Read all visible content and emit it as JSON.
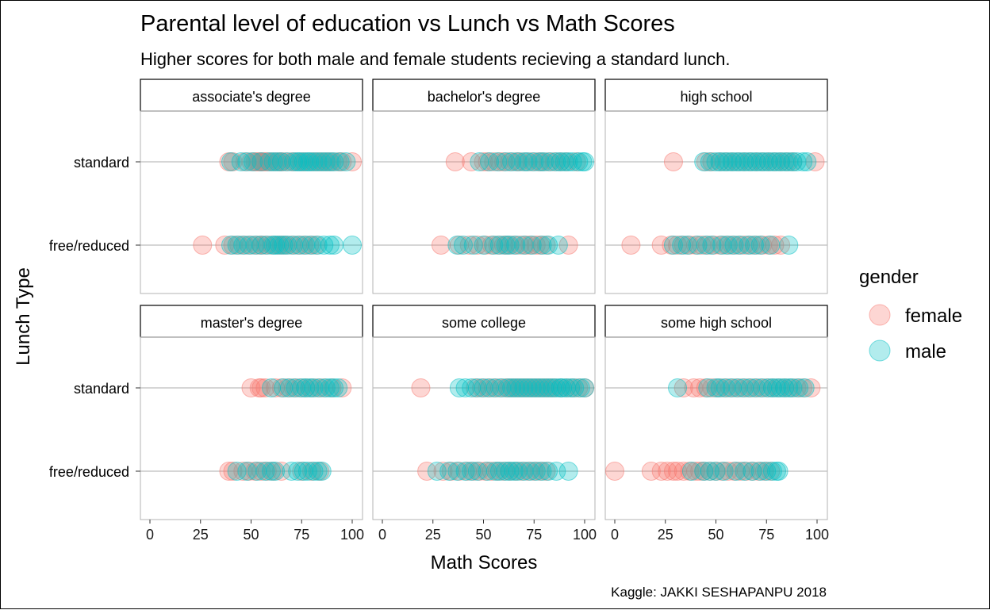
{
  "chart_data": {
    "type": "scatter",
    "title": "Parental level of education vs Lunch vs Math Scores",
    "subtitle": "Higher scores for both male and female students recieving a standard lunch.",
    "xlabel": "Math Scores",
    "ylabel": "Lunch Type",
    "caption": "Kaggle: JAKKI SESHAPANPU 2018",
    "xlim": [
      0,
      100
    ],
    "x_ticks": [
      0,
      25,
      50,
      75,
      100
    ],
    "y_categories": [
      "standard",
      "free/reduced"
    ],
    "legend": {
      "title": "gender",
      "position": "right",
      "entries": [
        {
          "name": "female",
          "color": "#F8766D"
        },
        {
          "name": "male",
          "color": "#00BFC4"
        }
      ]
    },
    "point_alpha": 0.3,
    "panels": [
      {
        "label": "associate's degree",
        "standard": {
          "female": [
            39,
            41,
            47,
            50,
            52,
            53,
            54,
            55,
            56,
            57,
            58,
            60,
            62,
            64,
            65,
            67,
            70,
            72,
            75,
            77,
            80,
            82,
            84,
            86,
            88,
            90,
            93,
            95,
            100
          ],
          "male": [
            40,
            45,
            48,
            51,
            55,
            59,
            61,
            63,
            65,
            68,
            71,
            73,
            74,
            76,
            78,
            79,
            81,
            83,
            85,
            87,
            89,
            91,
            94,
            97
          ]
        },
        "free/reduced": {
          "female": [
            26,
            37,
            41,
            44,
            47,
            50,
            53,
            55,
            57,
            60,
            63,
            65,
            67,
            70,
            73,
            76,
            79,
            82
          ],
          "male": [
            40,
            43,
            46,
            49,
            52,
            55,
            58,
            61,
            62,
            64,
            66,
            68,
            71,
            74,
            77,
            80,
            83,
            86,
            89,
            91,
            100
          ]
        }
      },
      {
        "label": "bachelor's degree",
        "standard": {
          "female": [
            36,
            44,
            50,
            52,
            55,
            58,
            60,
            63,
            66,
            68,
            71,
            74,
            77,
            79,
            82,
            85,
            88,
            91,
            96
          ],
          "male": [
            48,
            53,
            57,
            61,
            64,
            67,
            70,
            72,
            75,
            78,
            80,
            83,
            86,
            88,
            90,
            92,
            94,
            97,
            99,
            100
          ]
        },
        "free/reduced": {
          "female": [
            29,
            38,
            43,
            47,
            51,
            54,
            57,
            60,
            62,
            65,
            68,
            71,
            73,
            76,
            78,
            81,
            92
          ],
          "male": [
            37,
            40,
            45,
            50,
            55,
            58,
            61,
            63,
            66,
            70,
            74,
            79,
            82,
            87
          ]
        }
      },
      {
        "label": "high school",
        "standard": {
          "female": [
            29,
            45,
            48,
            52,
            55,
            58,
            61,
            64,
            67,
            70,
            73,
            76,
            79,
            82,
            85,
            88,
            99
          ],
          "male": [
            44,
            47,
            50,
            52,
            54,
            56,
            58,
            60,
            62,
            64,
            66,
            68,
            70,
            72,
            74,
            76,
            78,
            80,
            82,
            84,
            86,
            88,
            90,
            93,
            95
          ]
        },
        "free/reduced": {
          "female": [
            8,
            23,
            28,
            31,
            34,
            37,
            40,
            43,
            46,
            49,
            52,
            55,
            58,
            61,
            64,
            67,
            70,
            73,
            76,
            79,
            82
          ],
          "male": [
            29,
            33,
            36,
            41,
            45,
            48,
            53,
            56,
            59,
            62,
            66,
            69,
            72,
            77,
            86
          ]
        }
      },
      {
        "label": "master's degree",
        "standard": {
          "female": [
            50,
            54,
            55,
            57,
            62,
            65,
            68,
            71,
            74,
            77,
            80,
            83,
            86,
            90,
            95
          ],
          "male": [
            60,
            66,
            69,
            72,
            75,
            77,
            79,
            81,
            84,
            87,
            89,
            91,
            93
          ]
        },
        "free/reduced": {
          "female": [
            39,
            41,
            46,
            49,
            52,
            55,
            58,
            61,
            65,
            75,
            80,
            84
          ],
          "male": [
            43,
            48,
            53,
            57,
            60,
            62,
            70,
            73,
            76,
            78,
            81,
            83,
            85
          ]
        }
      },
      {
        "label": "some college",
        "standard": {
          "female": [
            19,
            46,
            49,
            52,
            55,
            58,
            61,
            63,
            65,
            67,
            69,
            71,
            73,
            75,
            77,
            79,
            81,
            83,
            85,
            88,
            91,
            94,
            97,
            100
          ],
          "male": [
            38,
            41,
            44,
            47,
            50,
            53,
            56,
            59,
            62,
            64,
            66,
            68,
            70,
            72,
            74,
            76,
            78,
            80,
            82,
            84,
            86,
            88,
            89,
            91,
            93,
            95,
            98,
            100
          ]
        },
        "free/reduced": {
          "female": [
            22,
            30,
            34,
            38,
            42,
            45,
            48,
            51,
            54,
            57,
            60,
            63,
            66,
            69,
            72,
            75,
            78,
            81
          ],
          "male": [
            27,
            33,
            37,
            41,
            44,
            47,
            52,
            56,
            58,
            61,
            63,
            65,
            67,
            70,
            73,
            76,
            79,
            82,
            86,
            92
          ]
        }
      },
      {
        "label": "some high school",
        "standard": {
          "female": [
            34,
            39,
            42,
            45,
            48,
            51,
            54,
            57,
            60,
            63,
            66,
            69,
            72,
            75,
            78,
            81,
            84,
            87,
            90,
            93,
            97
          ],
          "male": [
            31,
            46,
            50,
            52,
            55,
            58,
            61,
            64,
            67,
            70,
            73,
            76,
            78,
            80,
            82,
            84,
            86,
            88,
            91,
            94
          ]
        },
        "free/reduced": {
          "female": [
            0,
            18,
            23,
            26,
            29,
            31,
            34,
            37,
            40,
            42,
            44,
            47,
            50,
            53,
            56,
            59,
            62,
            65,
            68,
            71,
            74,
            77
          ],
          "male": [
            38,
            44,
            47,
            50,
            54,
            60,
            64,
            68,
            72,
            75,
            78,
            80,
            81
          ]
        }
      }
    ]
  }
}
